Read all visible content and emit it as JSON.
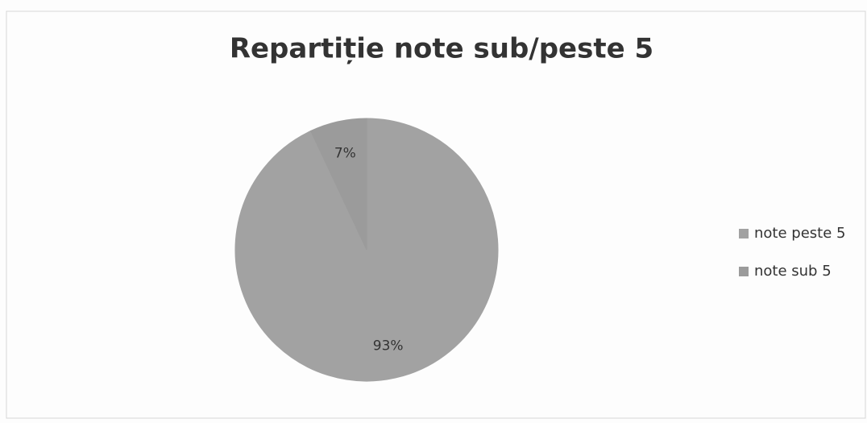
{
  "chart_data": {
    "type": "pie",
    "title": "Repartiție note sub/peste 5",
    "categories": [
      "note peste 5",
      "note sub 5"
    ],
    "values": [
      93,
      7
    ],
    "value_labels": [
      "93%",
      "7%"
    ],
    "colors": [
      "#a2a2a2",
      "#9b9b9b"
    ],
    "legend": "right"
  }
}
